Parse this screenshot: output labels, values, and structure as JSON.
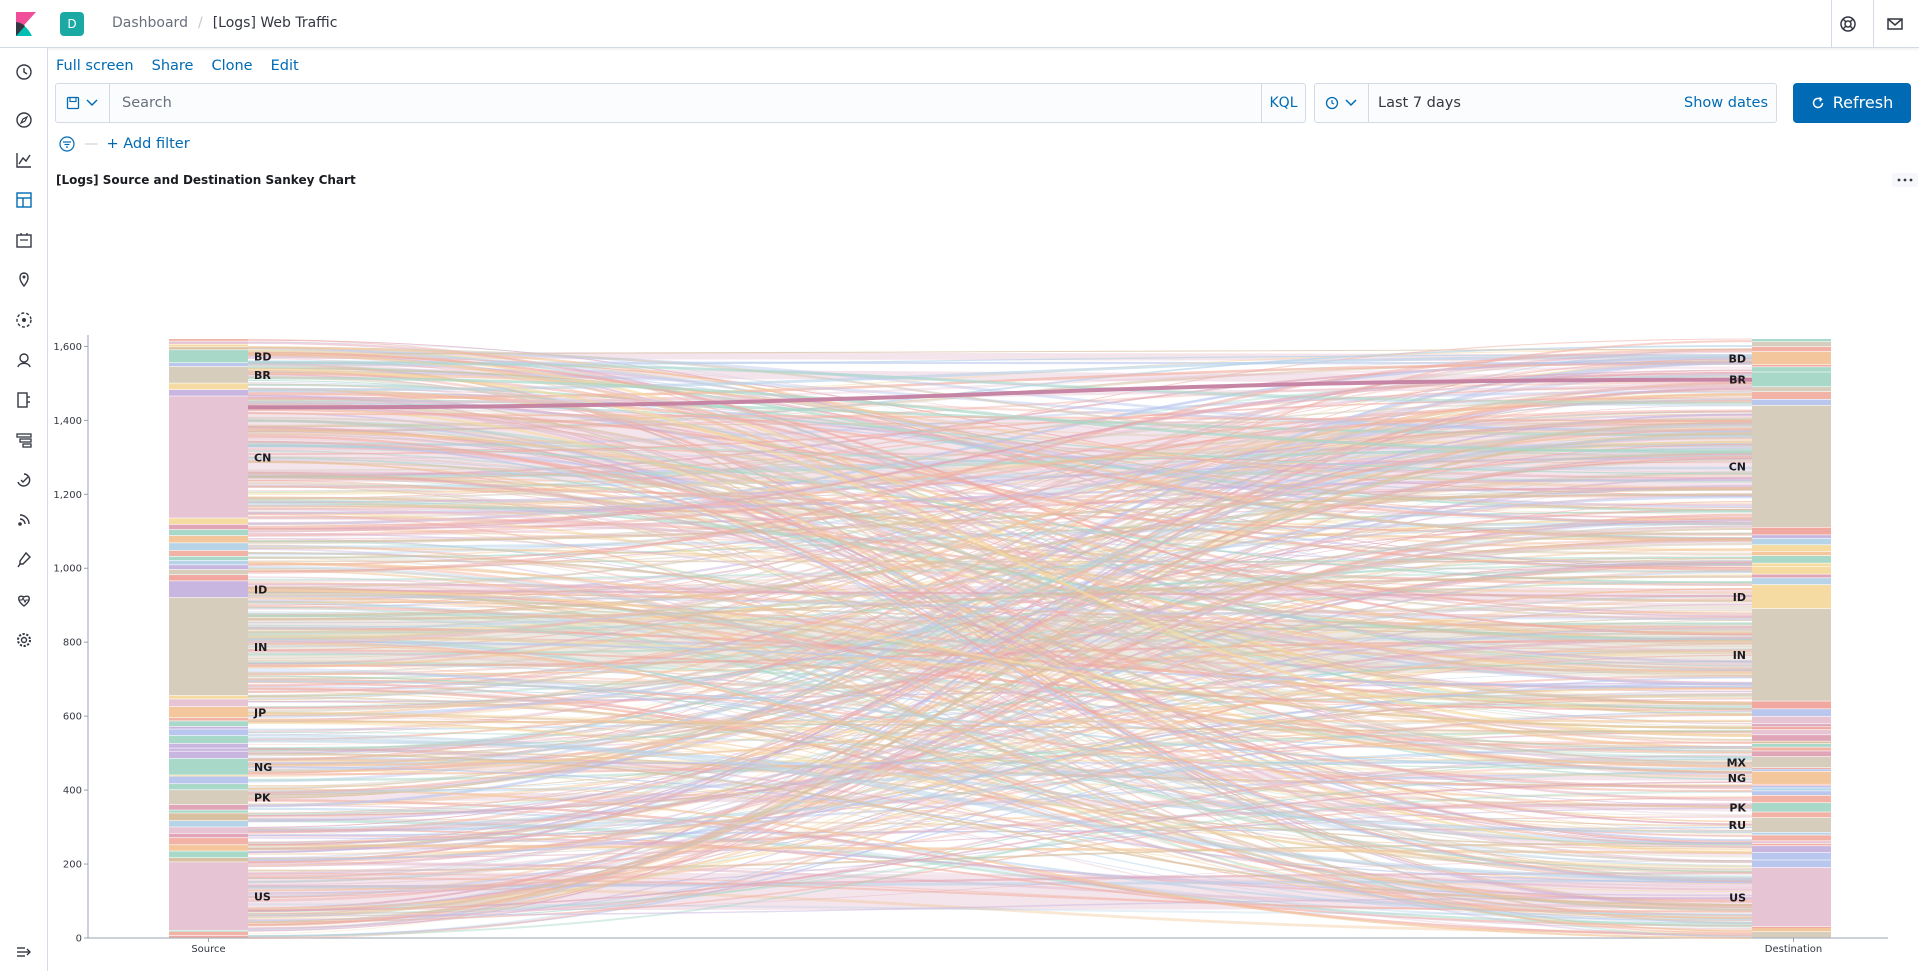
{
  "header": {
    "space_initial": "D",
    "breadcrumbs": [
      "Dashboard",
      "[Logs] Web Traffic"
    ]
  },
  "toolbar": {
    "actions": [
      "Full screen",
      "Share",
      "Clone",
      "Edit"
    ],
    "search_placeholder": "Search",
    "query_language": "KQL",
    "time_range": "Last 7 days",
    "show_dates": "Show dates",
    "refresh_label": "Refresh",
    "add_filter": "+ Add filter"
  },
  "panel": {
    "title": "[Logs] Source and Destination Sankey Chart"
  },
  "nav_icons": [
    "clock-icon",
    "discover-icon",
    "visualize-icon",
    "dashboard-icon",
    "canvas-icon",
    "maps-icon",
    "ml-icon",
    "infrastructure-icon",
    "logs-icon",
    "apm-icon",
    "uptime-icon",
    "siem-icon",
    "dev-tools-icon",
    "monitoring-icon",
    "management-icon",
    "collapse-icon"
  ],
  "colors": {
    "accent": "#006bb4",
    "space": "#1ba9a4"
  },
  "chart_data": {
    "type": "sankey",
    "yticks": [
      0,
      200,
      400,
      600,
      800,
      1000,
      1200,
      1400,
      1600
    ],
    "ylim": [
      0,
      1620
    ],
    "columns": [
      "Source",
      "Destination"
    ],
    "source_nodes": [
      {
        "label": "US",
        "from": 20,
        "to": 205
      },
      {
        "label": "PK",
        "from": 360,
        "to": 400
      },
      {
        "label": "NG",
        "from": 440,
        "to": 485
      },
      {
        "label": "JP",
        "from": 595,
        "to": 625
      },
      {
        "label": "IN",
        "from": 655,
        "to": 920
      },
      {
        "label": "ID",
        "from": 920,
        "to": 965
      },
      {
        "label": "CN",
        "from": 1135,
        "to": 1465
      },
      {
        "label": "BR",
        "from": 1500,
        "to": 1545
      },
      {
        "label": "BD",
        "from": 1555,
        "to": 1590
      }
    ],
    "destination_nodes": [
      {
        "label": "US",
        "from": 30,
        "to": 190
      },
      {
        "label": "RU",
        "from": 285,
        "to": 325
      },
      {
        "label": "PK",
        "from": 340,
        "to": 365
      },
      {
        "label": "NG",
        "from": 415,
        "to": 450
      },
      {
        "label": "MX",
        "from": 460,
        "to": 490
      },
      {
        "label": "IN",
        "from": 640,
        "to": 890
      },
      {
        "label": "ID",
        "from": 890,
        "to": 955
      },
      {
        "label": "CN",
        "from": 1110,
        "to": 1440
      },
      {
        "label": "BR",
        "from": 1490,
        "to": 1530
      },
      {
        "label": "BD",
        "from": 1550,
        "to": 1585
      }
    ]
  }
}
